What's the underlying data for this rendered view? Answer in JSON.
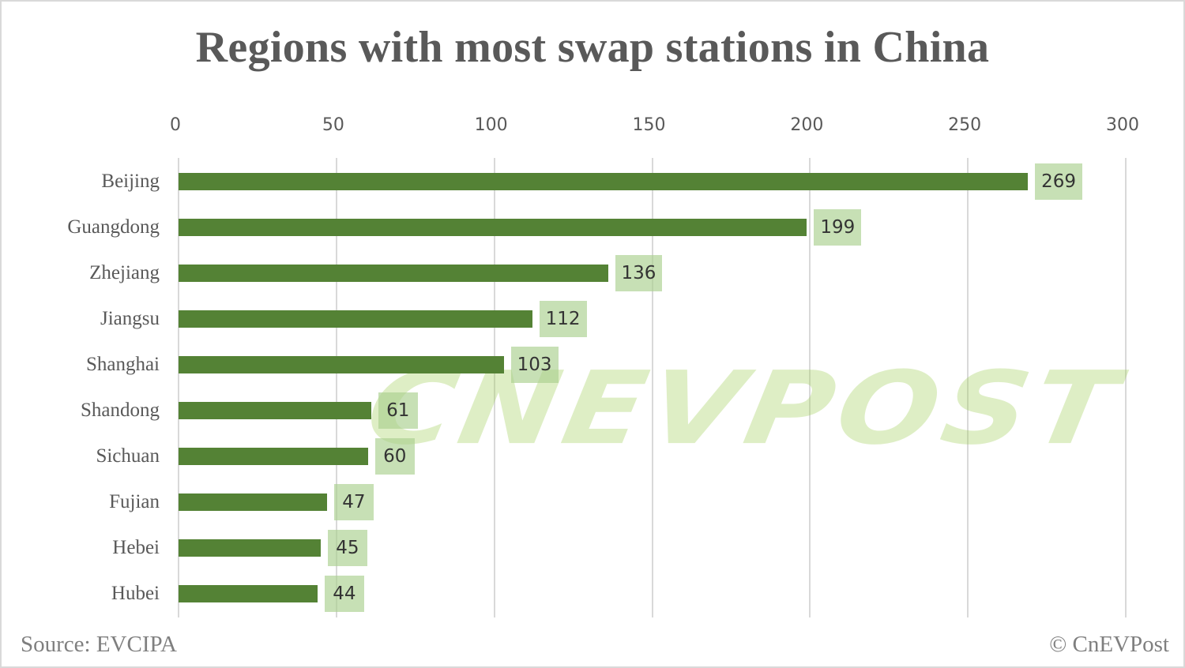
{
  "chart_data": {
    "type": "bar",
    "orientation": "horizontal",
    "title": "Regions with most swap stations in China",
    "xlabel": "",
    "ylabel": "",
    "xlim": [
      0,
      300
    ],
    "x_ticks": [
      "0",
      "50",
      "100",
      "150",
      "200",
      "250",
      "300"
    ],
    "grid": true,
    "legend": null,
    "categories": [
      "Beijing",
      "Guangdong",
      "Zhejiang",
      "Jiangsu",
      "Shanghai",
      "Shandong",
      "Sichuan",
      "Fujian",
      "Hebei",
      "Hubei"
    ],
    "values": [
      269,
      199,
      136,
      112,
      103,
      61,
      60,
      47,
      45,
      44
    ],
    "value_labels": [
      "269",
      "199",
      "136",
      "112",
      "103",
      "61",
      "60",
      "47",
      "45",
      "44"
    ],
    "bar_color": "#548235",
    "label_bg_color": "#a9d08e"
  },
  "footer": {
    "source": "Source: EVCIPA",
    "copyright": "© CnEVPost"
  },
  "watermark": "CNEVPOST"
}
